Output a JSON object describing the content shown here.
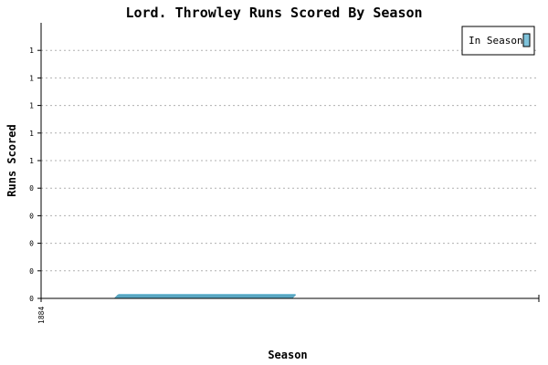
{
  "chart_data": {
    "type": "bar",
    "title": "Lord. Throwley Runs Scored By Season",
    "xlabel": "Season",
    "ylabel": "Runs Scored",
    "categories": [
      "1884"
    ],
    "series": [
      {
        "name": "In Season",
        "values": [
          0
        ]
      }
    ],
    "y_ticks": [
      "0",
      "0",
      "0",
      "0",
      "0",
      "1",
      "1",
      "1",
      "1",
      "1"
    ],
    "grid": true,
    "legend": "top-right",
    "colors": {
      "bar": "#5aa8c4",
      "bar_top": "#7fc3db",
      "grid": "#b0b0b0",
      "axis": "#000000"
    }
  }
}
